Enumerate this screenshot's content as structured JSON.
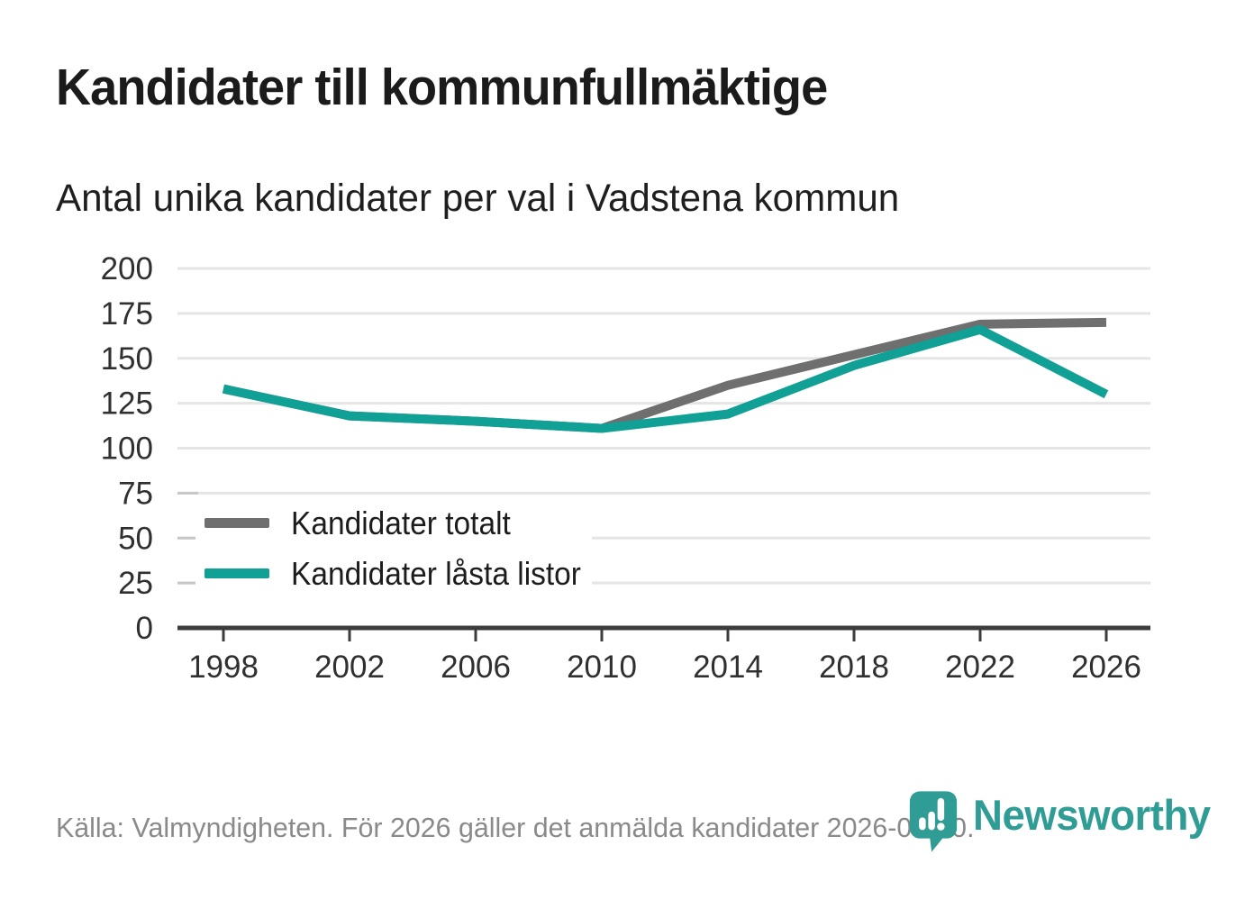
{
  "header": {
    "title": "Kandidater till kommunfullmäktige",
    "subtitle": "Antal unika kandidater per val i Vadstena kommun"
  },
  "chart_data": {
    "type": "line",
    "title": "Kandidater till kommunfullmäktige",
    "subtitle": "Antal unika kandidater per val i Vadstena kommun",
    "x": [
      1998,
      2002,
      2006,
      2010,
      2014,
      2018,
      2022,
      2026
    ],
    "series": [
      {
        "name": "Kandidater totalt",
        "color": "#6f6f6f",
        "values": [
          133,
          118,
          115,
          111,
          135,
          152,
          169,
          170
        ]
      },
      {
        "name": "Kandidater låsta listor",
        "color": "#10a095",
        "values": [
          133,
          118,
          115,
          111,
          119,
          146,
          166,
          130
        ]
      }
    ],
    "xlabel": "",
    "ylabel": "",
    "ylim": [
      0,
      200
    ],
    "ytick_step": 25,
    "grid": "horizontal",
    "legend_position": "inside-lower-left"
  },
  "footer": {
    "source": "Källa: Valmyndigheten. För 2026 gäller det anmälda kandidater 2026-04-10.",
    "brand": "Newsworthy",
    "brand_color": "#2f9d95"
  }
}
